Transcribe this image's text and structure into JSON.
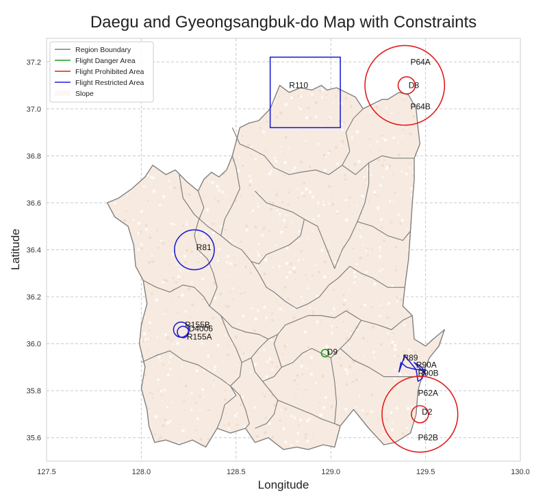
{
  "chart_data": {
    "type": "map",
    "title": "Daegu and Gyeongsangbuk-do Map with Constraints",
    "xlabel": "Longitude",
    "ylabel": "Latitude",
    "xlim": [
      127.5,
      130.0
    ],
    "ylim": [
      35.5,
      37.3
    ],
    "xticks": [
      "127.5",
      "128.0",
      "128.5",
      "129.0",
      "129.5",
      "130.0"
    ],
    "yticks": [
      "35.6",
      "35.8",
      "36.0",
      "36.2",
      "36.4",
      "36.6",
      "36.8",
      "37.0",
      "37.2"
    ],
    "grid": true,
    "legend_position": "top-left",
    "legend": [
      {
        "label": "Region Boundary",
        "color": "#7f7f7f"
      },
      {
        "label": "Flight Danger Area",
        "color": "#1a9e1a"
      },
      {
        "label": "Flight Prohibited Area",
        "color": "#e31a1c"
      },
      {
        "label": "Flight Restricted Area",
        "color": "#1f1fd6"
      },
      {
        "label": "Slope",
        "color": "#f5e6da"
      }
    ],
    "zones": [
      {
        "name": "R110",
        "category": "restricted",
        "shape": "rect",
        "lon_min": 128.68,
        "lon_max": 129.05,
        "lat_min": 36.92,
        "lat_max": 37.22,
        "label_lon": 128.78,
        "label_lat": 37.1
      },
      {
        "name": "P64A",
        "category": "prohibited",
        "shape": "circle",
        "lon": 129.39,
        "lat": 37.1,
        "radius_deg": 0.21,
        "label_lon": 129.42,
        "label_lat": 37.2
      },
      {
        "name": "D8",
        "category": "prohibited",
        "shape": "circle",
        "lon": 129.4,
        "lat": 37.1,
        "radius_deg": 0.045,
        "label_lon": 129.41,
        "label_lat": 37.1
      },
      {
        "name": "P64B",
        "category": "prohibited",
        "label_only": true,
        "label_lon": 129.42,
        "label_lat": 37.01
      },
      {
        "name": "R81",
        "category": "restricted",
        "shape": "circle",
        "lon": 128.28,
        "lat": 36.4,
        "radius_deg": 0.105,
        "label_lon": 128.29,
        "label_lat": 36.41
      },
      {
        "name": "R155B",
        "category": "restricted",
        "shape": "circle",
        "lon": 128.21,
        "lat": 36.06,
        "radius_deg": 0.04,
        "label_lon": 128.23,
        "label_lat": 36.08
      },
      {
        "name": "D4006",
        "category": "restricted",
        "shape": "circle",
        "lon": 128.22,
        "lat": 36.05,
        "radius_deg": 0.03,
        "label_lon": 128.25,
        "label_lat": 36.065
      },
      {
        "name": "R155A",
        "category": "restricted",
        "label_only": true,
        "label_lon": 128.24,
        "label_lat": 36.03
      },
      {
        "name": "D9",
        "category": "danger",
        "shape": "circle",
        "lon": 128.97,
        "lat": 35.96,
        "radius_deg": 0.02,
        "label_lon": 128.98,
        "label_lat": 35.965
      },
      {
        "name": "R89",
        "category": "restricted",
        "shape": "polygon",
        "points": [
          [
            129.36,
            35.88
          ],
          [
            129.39,
            35.95
          ],
          [
            129.43,
            35.91
          ],
          [
            129.45,
            35.89
          ],
          [
            129.4,
            35.9
          ],
          [
            129.37,
            35.92
          ]
        ],
        "label_lon": 129.38,
        "label_lat": 35.94
      },
      {
        "name": "R90A",
        "category": "restricted",
        "shape": "polygon",
        "points": [
          [
            129.44,
            35.92
          ],
          [
            129.48,
            35.9
          ],
          [
            129.5,
            35.87
          ]
        ],
        "label_lon": 129.45,
        "label_lat": 35.91
      },
      {
        "name": "R90B",
        "category": "restricted",
        "shape": "polygon",
        "points": [
          [
            129.45,
            35.89
          ],
          [
            129.5,
            35.89
          ],
          [
            129.48,
            35.85
          ],
          [
            129.46,
            35.84
          ],
          [
            129.45,
            35.89
          ]
        ],
        "label_lon": 129.46,
        "label_lat": 35.875
      },
      {
        "name": "P62A",
        "category": "prohibited",
        "label_only": true,
        "label_lon": 129.46,
        "label_lat": 35.79
      },
      {
        "name": "P62B",
        "category": "prohibited",
        "shape": "circle",
        "lon": 129.47,
        "lat": 35.7,
        "radius_deg": 0.2,
        "label_lon": 129.46,
        "label_lat": 35.6
      },
      {
        "name": "D2",
        "category": "prohibited",
        "shape": "circle",
        "lon": 129.47,
        "lat": 35.7,
        "radius_deg": 0.045,
        "label_lon": 129.48,
        "label_lat": 35.71
      }
    ],
    "outline": [
      [
        128.07,
        35.58
      ],
      [
        128.13,
        35.59
      ],
      [
        128.2,
        35.57
      ],
      [
        128.27,
        35.59
      ],
      [
        128.34,
        35.56
      ],
      [
        128.4,
        35.64
      ],
      [
        128.47,
        35.62
      ],
      [
        128.55,
        35.64
      ],
      [
        128.6,
        35.58
      ],
      [
        128.67,
        35.6
      ],
      [
        128.75,
        35.55
      ],
      [
        128.82,
        35.56
      ],
      [
        128.88,
        35.55
      ],
      [
        128.96,
        35.57
      ],
      [
        129.02,
        35.56
      ],
      [
        129.05,
        35.65
      ],
      [
        129.12,
        35.72
      ],
      [
        129.2,
        35.64
      ],
      [
        129.28,
        35.57
      ],
      [
        129.34,
        35.58
      ],
      [
        129.42,
        35.62
      ],
      [
        129.45,
        35.7
      ],
      [
        129.46,
        35.8
      ],
      [
        129.48,
        35.86
      ],
      [
        129.52,
        35.94
      ],
      [
        129.57,
        35.99
      ],
      [
        129.6,
        36.06
      ],
      [
        129.54,
        36.02
      ],
      [
        129.5,
        35.99
      ],
      [
        129.44,
        36.02
      ],
      [
        129.43,
        36.12
      ],
      [
        129.38,
        36.16
      ],
      [
        129.39,
        36.24
      ],
      [
        129.41,
        36.36
      ],
      [
        129.42,
        36.48
      ],
      [
        129.43,
        36.6
      ],
      [
        129.44,
        36.7
      ],
      [
        129.44,
        36.79
      ],
      [
        129.47,
        36.85
      ],
      [
        129.46,
        36.92
      ],
      [
        129.45,
        37.0
      ],
      [
        129.41,
        37.06
      ],
      [
        129.36,
        37.07
      ],
      [
        129.3,
        37.04
      ],
      [
        129.27,
        37.04
      ],
      [
        129.17,
        37.0
      ],
      [
        129.13,
        37.05
      ],
      [
        129.08,
        37.07
      ],
      [
        129.03,
        37.09
      ],
      [
        128.98,
        37.08
      ],
      [
        128.95,
        37.1
      ],
      [
        128.9,
        37.08
      ],
      [
        128.84,
        37.09
      ],
      [
        128.78,
        37.07
      ],
      [
        128.73,
        37.1
      ],
      [
        128.68,
        37.0
      ],
      [
        128.62,
        36.95
      ],
      [
        128.57,
        36.94
      ],
      [
        128.52,
        36.92
      ],
      [
        128.5,
        36.86
      ],
      [
        128.48,
        36.8
      ],
      [
        128.45,
        36.74
      ],
      [
        128.41,
        36.71
      ],
      [
        128.37,
        36.73
      ],
      [
        128.33,
        36.7
      ],
      [
        128.3,
        36.65
      ],
      [
        128.24,
        36.69
      ],
      [
        128.18,
        36.74
      ],
      [
        128.13,
        36.72
      ],
      [
        128.06,
        36.76
      ],
      [
        128.02,
        36.71
      ],
      [
        127.95,
        36.66
      ],
      [
        127.88,
        36.62
      ],
      [
        127.82,
        36.6
      ],
      [
        127.86,
        36.54
      ],
      [
        127.93,
        36.5
      ],
      [
        127.96,
        36.42
      ],
      [
        127.97,
        36.33
      ],
      [
        128.01,
        36.27
      ],
      [
        128.03,
        36.17
      ],
      [
        128.0,
        36.08
      ],
      [
        127.99,
        36.0
      ],
      [
        128.02,
        35.9
      ],
      [
        128.0,
        35.81
      ],
      [
        128.03,
        35.72
      ],
      [
        128.04,
        35.65
      ]
    ],
    "inner_boundaries": [
      [
        [
          128.48,
          36.92
        ],
        [
          128.52,
          36.85
        ],
        [
          128.58,
          36.83
        ],
        [
          128.65,
          36.8
        ],
        [
          128.7,
          36.75
        ],
        [
          128.78,
          36.72
        ],
        [
          128.84,
          36.73
        ],
        [
          128.92,
          36.74
        ],
        [
          128.99,
          36.72
        ],
        [
          129.06,
          36.76
        ],
        [
          129.13,
          36.72
        ],
        [
          129.2,
          36.77
        ],
        [
          129.27,
          36.8
        ],
        [
          129.33,
          36.79
        ],
        [
          129.44,
          36.79
        ]
      ],
      [
        [
          129.06,
          36.76
        ],
        [
          129.1,
          36.82
        ],
        [
          129.08,
          36.9
        ],
        [
          129.12,
          36.96
        ],
        [
          129.17,
          37.0
        ]
      ],
      [
        [
          128.2,
          36.72
        ],
        [
          128.22,
          36.62
        ],
        [
          128.28,
          36.55
        ],
        [
          128.35,
          36.5
        ],
        [
          128.42,
          36.46
        ],
        [
          128.48,
          36.42
        ],
        [
          128.53,
          36.4
        ],
        [
          128.58,
          36.35
        ],
        [
          128.62,
          36.3
        ],
        [
          128.66,
          36.24
        ],
        [
          128.7,
          36.22
        ],
        [
          128.76,
          36.18
        ],
        [
          128.82,
          36.15
        ],
        [
          128.88,
          36.17
        ],
        [
          128.94,
          36.2
        ],
        [
          128.99,
          36.25
        ],
        [
          129.04,
          36.28
        ],
        [
          129.1,
          36.33
        ],
        [
          129.16,
          36.3
        ],
        [
          129.22,
          36.28
        ],
        [
          129.3,
          36.24
        ],
        [
          129.39,
          36.24
        ]
      ],
      [
        [
          128.42,
          36.46
        ],
        [
          128.44,
          36.53
        ],
        [
          128.48,
          36.59
        ],
        [
          128.52,
          36.66
        ],
        [
          128.5,
          36.75
        ],
        [
          128.48,
          36.8
        ]
      ],
      [
        [
          128.6,
          36.65
        ],
        [
          128.66,
          36.6
        ],
        [
          128.73,
          36.58
        ],
        [
          128.8,
          36.56
        ],
        [
          128.86,
          36.53
        ],
        [
          128.93,
          36.5
        ],
        [
          128.96,
          36.44
        ],
        [
          128.99,
          36.38
        ],
        [
          129.02,
          36.32
        ]
      ],
      [
        [
          128.86,
          36.53
        ],
        [
          128.84,
          36.46
        ],
        [
          128.78,
          36.42
        ],
        [
          128.72,
          36.4
        ],
        [
          128.66,
          36.38
        ],
        [
          128.62,
          36.34
        ],
        [
          128.58,
          36.35
        ]
      ],
      [
        [
          129.02,
          36.32
        ],
        [
          129.06,
          36.4
        ],
        [
          129.1,
          36.45
        ],
        [
          129.14,
          36.52
        ],
        [
          129.18,
          36.6
        ],
        [
          129.2,
          36.68
        ],
        [
          129.2,
          36.77
        ]
      ],
      [
        [
          129.14,
          36.52
        ],
        [
          129.22,
          36.5
        ],
        [
          129.3,
          36.46
        ],
        [
          129.38,
          36.44
        ],
        [
          129.42,
          36.48
        ]
      ],
      [
        [
          128.01,
          36.27
        ],
        [
          128.08,
          36.24
        ],
        [
          128.15,
          36.22
        ],
        [
          128.22,
          36.25
        ],
        [
          128.28,
          36.24
        ],
        [
          128.33,
          36.2
        ],
        [
          128.36,
          36.16
        ],
        [
          128.42,
          36.12
        ],
        [
          128.48,
          36.07
        ],
        [
          128.55,
          36.05
        ],
        [
          128.62,
          36.04
        ],
        [
          128.67,
          36.02
        ],
        [
          128.72,
          36.04
        ],
        [
          128.76,
          36.08
        ],
        [
          128.82,
          36.1
        ],
        [
          128.88,
          36.12
        ],
        [
          128.95,
          36.12
        ],
        [
          129.02,
          36.11
        ],
        [
          129.08,
          36.14
        ],
        [
          129.16,
          36.1
        ],
        [
          129.25,
          36.08
        ],
        [
          129.32,
          36.06
        ],
        [
          129.38,
          36.1
        ],
        [
          129.43,
          36.12
        ]
      ],
      [
        [
          128.3,
          36.65
        ],
        [
          128.33,
          36.58
        ],
        [
          128.3,
          36.52
        ],
        [
          128.28,
          36.46
        ],
        [
          128.3,
          36.4
        ],
        [
          128.35,
          36.36
        ],
        [
          128.38,
          36.3
        ],
        [
          128.4,
          36.24
        ],
        [
          128.36,
          36.16
        ]
      ],
      [
        [
          128.0,
          35.92
        ],
        [
          128.08,
          35.95
        ],
        [
          128.15,
          35.97
        ],
        [
          128.22,
          35.93
        ],
        [
          128.3,
          35.91
        ],
        [
          128.36,
          35.88
        ],
        [
          128.42,
          35.85
        ],
        [
          128.47,
          35.82
        ],
        [
          128.52,
          35.78
        ],
        [
          128.55,
          35.72
        ],
        [
          128.57,
          35.66
        ],
        [
          128.55,
          35.64
        ]
      ],
      [
        [
          128.42,
          36.12
        ],
        [
          128.46,
          36.04
        ],
        [
          128.5,
          35.98
        ],
        [
          128.53,
          35.92
        ],
        [
          128.52,
          35.86
        ],
        [
          128.47,
          35.82
        ]
      ],
      [
        [
          128.53,
          35.92
        ],
        [
          128.58,
          35.94
        ],
        [
          128.62,
          35.98
        ],
        [
          128.67,
          36.02
        ]
      ],
      [
        [
          128.58,
          35.94
        ],
        [
          128.6,
          35.88
        ],
        [
          128.64,
          35.84
        ],
        [
          128.68,
          35.8
        ],
        [
          128.72,
          35.76
        ],
        [
          128.7,
          35.7
        ],
        [
          128.66,
          35.66
        ],
        [
          128.6,
          35.64
        ]
      ],
      [
        [
          128.64,
          35.84
        ],
        [
          128.7,
          35.86
        ],
        [
          128.74,
          35.9
        ],
        [
          128.72,
          35.95
        ],
        [
          128.7,
          36.0
        ],
        [
          128.72,
          36.04
        ]
      ],
      [
        [
          128.74,
          35.9
        ],
        [
          128.8,
          35.92
        ],
        [
          128.85,
          35.96
        ],
        [
          128.9,
          35.98
        ],
        [
          128.95,
          35.96
        ],
        [
          129.0,
          35.94
        ],
        [
          129.05,
          35.98
        ],
        [
          129.1,
          36.02
        ],
        [
          129.16,
          36.1
        ]
      ],
      [
        [
          128.72,
          35.76
        ],
        [
          128.78,
          35.74
        ],
        [
          128.84,
          35.72
        ],
        [
          128.9,
          35.7
        ],
        [
          128.95,
          35.68
        ],
        [
          129.02,
          35.66
        ],
        [
          129.05,
          35.65
        ]
      ],
      [
        [
          129.02,
          35.66
        ],
        [
          129.03,
          35.75
        ],
        [
          129.02,
          35.84
        ],
        [
          129.0,
          35.94
        ]
      ],
      [
        [
          129.05,
          35.98
        ],
        [
          129.12,
          35.93
        ],
        [
          129.2,
          35.9
        ],
        [
          129.28,
          35.86
        ],
        [
          129.36,
          35.86
        ],
        [
          129.42,
          35.86
        ],
        [
          129.48,
          35.86
        ]
      ],
      [
        [
          128.47,
          35.82
        ],
        [
          128.5,
          35.78
        ],
        [
          128.44,
          35.74
        ],
        [
          128.42,
          35.68
        ],
        [
          128.4,
          35.64
        ]
      ]
    ]
  }
}
